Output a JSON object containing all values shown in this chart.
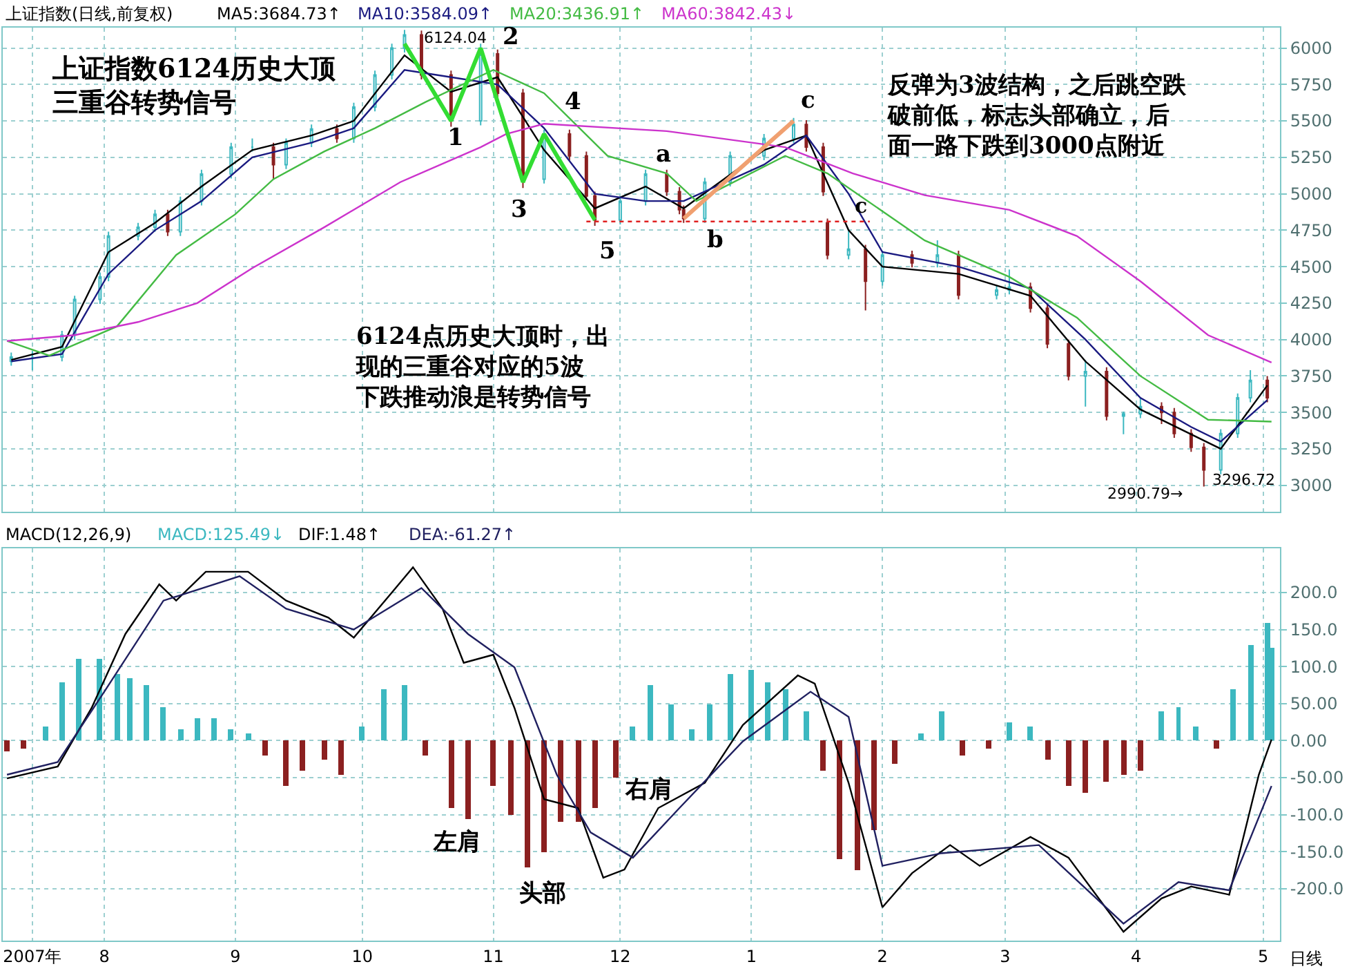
{
  "chart_data": [
    {
      "type": "candlestick",
      "title": "上证指数(日线,前复权)",
      "x": [
        "2007-07-10",
        "2007-07-15",
        "2007-07-22",
        "2007-07-25",
        "2007-07-31",
        "2007-08-02",
        "2007-08-09",
        "2007-08-13",
        "2007-08-16",
        "2007-08-19",
        "2007-08-24",
        "2007-08-31",
        "2007-09-05",
        "2007-09-10",
        "2007-09-13",
        "2007-09-19",
        "2007-09-25",
        "2007-09-29",
        "2007-10-04",
        "2007-10-08",
        "2007-10-11",
        "2007-10-15",
        "2007-10-22",
        "2007-10-29",
        "2007-11-02",
        "2007-11-08",
        "2007-11-13",
        "2007-11-19",
        "2007-11-23",
        "2007-11-25",
        "2007-12-01",
        "2007-12-07",
        "2007-12-12",
        "2007-12-15",
        "2007-12-16",
        "2007-12-21",
        "2007-12-27",
        "2008-01-04",
        "2008-01-11",
        "2008-01-14",
        "2008-01-18",
        "2008-01-19",
        "2008-01-24",
        "2008-01-28",
        "2008-02-01",
        "2008-02-08",
        "2008-02-14",
        "2008-02-19",
        "2008-02-28",
        "2008-03-02",
        "2008-03-07",
        "2008-03-11",
        "2008-03-16",
        "2008-03-20",
        "2008-03-25",
        "2008-03-29",
        "2008-04-02",
        "2008-04-07",
        "2008-04-10",
        "2008-04-14",
        "2008-04-17",
        "2008-04-21",
        "2008-04-25",
        "2008-04-28",
        "2008-05-02"
      ],
      "ohlc": [
        [
          3850,
          3910,
          3820,
          3880
        ],
        [
          3880,
          3920,
          3790,
          3880
        ],
        [
          3880,
          4060,
          3850,
          4030
        ],
        [
          4030,
          4300,
          4000,
          4275
        ],
        [
          4275,
          4460,
          4245,
          4430
        ],
        [
          4430,
          4740,
          4400,
          4710
        ],
        [
          4710,
          4800,
          4680,
          4770
        ],
        [
          4770,
          4890,
          4740,
          4860
        ],
        [
          4860,
          4890,
          4710,
          4740
        ],
        [
          4740,
          4980,
          4710,
          4950
        ],
        [
          4950,
          5165,
          4920,
          5135
        ],
        [
          5135,
          5350,
          5105,
          5320
        ],
        [
          5320,
          5380,
          5290,
          5320
        ],
        [
          5320,
          5350,
          5100,
          5200
        ],
        [
          5200,
          5380,
          5170,
          5350
        ],
        [
          5350,
          5475,
          5320,
          5445
        ],
        [
          5445,
          5475,
          5350,
          5380
        ],
        [
          5380,
          5625,
          5350,
          5595
        ],
        [
          5595,
          5845,
          5565,
          5815
        ],
        [
          5815,
          6030,
          5785,
          6000
        ],
        [
          6000,
          6124.04,
          5970,
          6090
        ],
        [
          6090,
          6120,
          5785,
          5815
        ],
        [
          5815,
          5845,
          5460,
          5500
        ],
        [
          5500,
          6030,
          5470,
          5960
        ],
        [
          5960,
          5990,
          5660,
          5690
        ],
        [
          5690,
          5720,
          5040,
          5100
        ],
        [
          5100,
          5440,
          5070,
          5410
        ],
        [
          5410,
          5440,
          5230,
          5260
        ],
        [
          5260,
          5290,
          4955,
          4985
        ],
        [
          4985,
          5015,
          4780,
          4820
        ],
        [
          4820,
          4980,
          4790,
          4950
        ],
        [
          4950,
          5165,
          4920,
          5135
        ],
        [
          5135,
          5165,
          4985,
          5015
        ],
        [
          5015,
          5045,
          4860,
          4890
        ],
        [
          4890,
          4920,
          4800,
          4830
        ],
        [
          4830,
          5110,
          4800,
          5080
        ],
        [
          5080,
          5290,
          5050,
          5260
        ],
        [
          5260,
          5410,
          5230,
          5380
        ],
        [
          5380,
          5520,
          5350,
          5475
        ],
        [
          5475,
          5505,
          5290,
          5320
        ],
        [
          5320,
          5350,
          4985,
          5015
        ],
        [
          4800,
          4830,
          4550,
          4580
        ],
        [
          4580,
          4750,
          4550,
          4620
        ],
        [
          4620,
          4650,
          4200,
          4400
        ],
        [
          4400,
          4610,
          4370,
          4580
        ],
        [
          4580,
          4610,
          4495,
          4525
        ],
        [
          4525,
          4680,
          4495,
          4580
        ],
        [
          4580,
          4610,
          4275,
          4305
        ],
        [
          4305,
          4370,
          4275,
          4340
        ],
        [
          4340,
          4480,
          4310,
          4360
        ],
        [
          4360,
          4390,
          4185,
          4215
        ],
        [
          4215,
          4245,
          3940,
          3970
        ],
        [
          3970,
          4000,
          3720,
          3750
        ],
        [
          3750,
          3860,
          3540,
          3780
        ],
        [
          3780,
          3810,
          3445,
          3475
        ],
        [
          3475,
          3505,
          3350,
          3490
        ],
        [
          3490,
          3600,
          3460,
          3540
        ],
        [
          3540,
          3570,
          3420,
          3500
        ],
        [
          3500,
          3530,
          3325,
          3355
        ],
        [
          3355,
          3385,
          3230,
          3260
        ],
        [
          3260,
          3290,
          2990.79,
          3105
        ],
        [
          3105,
          3385,
          3075,
          3355
        ],
        [
          3355,
          3630,
          3325,
          3600
        ],
        [
          3600,
          3790,
          3570,
          3720
        ],
        [
          3720,
          3750,
          3570,
          3600
        ]
      ],
      "xlim": [
        "2007-07-08",
        "2008-05-05"
      ],
      "xticks": [
        {
          "value": "2007-07-15",
          "label": null
        },
        {
          "value": "2007-08-01",
          "label": null
        },
        {
          "value": "2007-09-01",
          "label": null
        },
        {
          "value": "2007-10-01",
          "label": null
        },
        {
          "value": "2007-11-01",
          "label": null
        },
        {
          "value": "2007-12-01",
          "label": null
        },
        {
          "value": "2008-01-01",
          "label": null
        },
        {
          "value": "2008-02-01",
          "label": null
        },
        {
          "value": "2008-03-01",
          "label": null
        },
        {
          "value": "2008-04-01",
          "label": null
        },
        {
          "value": "2008-05-01",
          "label": null
        }
      ],
      "ylim": [
        2820,
        6140
      ],
      "yticks": [
        3000,
        3250,
        3500,
        3750,
        4000,
        4250,
        4500,
        4750,
        5000,
        5250,
        5500,
        5750,
        6000
      ],
      "tick_labels": "y",
      "grid": true,
      "series": [
        {
          "type": "line",
          "name": "MA5:3684.73↑",
          "color": "#000000",
          "x": [
            "2007-07-10",
            "2007-07-22",
            "2007-08-02",
            "2007-08-13",
            "2007-08-24",
            "2007-09-05",
            "2007-09-19",
            "2007-09-29",
            "2007-10-11",
            "2007-10-22",
            "2007-11-02",
            "2007-11-13",
            "2007-11-25",
            "2007-12-07",
            "2007-12-16",
            "2008-01-04",
            "2008-01-14",
            "2008-01-24",
            "2008-02-01",
            "2008-02-19",
            "2008-03-07",
            "2008-03-20",
            "2008-04-02",
            "2008-04-14",
            "2008-04-21",
            "2008-05-02"
          ],
          "values": [
            3860,
            3950,
            4600,
            4800,
            5050,
            5300,
            5400,
            5500,
            5950,
            5700,
            5800,
            5300,
            4900,
            5050,
            4900,
            5300,
            5400,
            4750,
            4500,
            4450,
            4300,
            3850,
            3520,
            3350,
            3250,
            3684.73
          ]
        },
        {
          "type": "line",
          "name": "MA10:3584.09↑",
          "color": "#1a1a80",
          "x": [
            "2007-07-10",
            "2007-07-22",
            "2007-08-02",
            "2007-08-13",
            "2007-08-24",
            "2007-09-05",
            "2007-09-19",
            "2007-09-29",
            "2007-10-11",
            "2007-10-22",
            "2007-11-02",
            "2007-11-13",
            "2007-11-25",
            "2007-12-07",
            "2007-12-16",
            "2008-01-04",
            "2008-01-14",
            "2008-01-24",
            "2008-02-01",
            "2008-02-19",
            "2008-03-07",
            "2008-03-20",
            "2008-04-02",
            "2008-04-14",
            "2008-04-21",
            "2008-05-02"
          ],
          "values": [
            3850,
            3900,
            4450,
            4750,
            4950,
            5250,
            5350,
            5450,
            5850,
            5800,
            5750,
            5450,
            5000,
            4950,
            4950,
            5200,
            5400,
            5000,
            4600,
            4500,
            4350,
            4000,
            3600,
            3400,
            3300,
            3584.09
          ]
        },
        {
          "type": "line",
          "name": "MA20:3436.91↑",
          "color": "#44bb44",
          "x": [
            "2007-07-09",
            "2007-07-19",
            "2007-08-04",
            "2007-08-18",
            "2007-09-01",
            "2007-09-10",
            "2007-09-22",
            "2007-10-04",
            "2007-10-16",
            "2007-11-01",
            "2007-11-13",
            "2007-11-28",
            "2007-12-12",
            "2007-12-19",
            "2008-01-09",
            "2008-01-19",
            "2008-02-11",
            "2008-03-02",
            "2008-03-18",
            "2008-04-02",
            "2008-04-18",
            "2008-05-03"
          ],
          "values": [
            3990,
            3890,
            4090,
            4580,
            4860,
            5100,
            5290,
            5450,
            5630,
            5850,
            5690,
            5260,
            5140,
            4950,
            5260,
            5140,
            4680,
            4430,
            4150,
            3750,
            3450,
            3436.91
          ]
        },
        {
          "type": "line",
          "name": "MA60:3842.43↓",
          "color": "#cc33cc",
          "x": [
            "2007-07-09",
            "2007-07-25",
            "2007-08-09",
            "2007-08-23",
            "2007-09-05",
            "2007-09-22",
            "2007-10-10",
            "2007-10-29",
            "2007-11-04",
            "2007-11-13",
            "2007-12-12",
            "2008-01-09",
            "2008-01-25",
            "2008-02-11",
            "2008-03-02",
            "2008-03-18",
            "2008-04-02",
            "2008-04-18",
            "2008-05-03"
          ],
          "values": [
            3990,
            4030,
            4120,
            4250,
            4490,
            4770,
            5080,
            5320,
            5410,
            5480,
            5430,
            5320,
            5140,
            4990,
            4890,
            4710,
            4400,
            4030,
            3842.43
          ]
        },
        {
          "type": "line",
          "color": "#33dd33",
          "x": [
            "2007-10-11",
            "2007-10-22",
            "2007-10-29",
            "2007-11-08",
            "2007-11-13",
            "2007-11-25"
          ],
          "values": [
            6030,
            5500,
            6000,
            5080,
            5410,
            4820
          ]
        },
        {
          "type": "line",
          "color": "#f0a070",
          "x": [
            "2007-12-16",
            "2008-01-11"
          ],
          "values": [
            4830,
            5500
          ]
        },
        {
          "type": "line",
          "color": "#e02020",
          "line_style": "dotted",
          "x": [
            "2007-11-23",
            "2008-01-29"
          ],
          "values": [
            4810,
            4810
          ]
        }
      ],
      "annotations": [
        "上证指数6124历史大顶三重谷转势信号",
        "6124点历史大顶时，出现的三重谷对应的5波下跌推动浪是转势信号",
        "反弹为3波结构，之后跳空跌破前低，标志头部确立，后面一路下跌到3000点附近",
        "6124.04",
        "1",
        "2",
        "3",
        "4",
        "5",
        "a",
        "b",
        "c",
        "c",
        "2990.79→",
        "3296.72"
      ]
    },
    {
      "type": "line",
      "title": "MACD(12,26,9)",
      "xlim": [
        "2007-07-08",
        "2008-05-05"
      ],
      "xticks": [
        {
          "value": "2007-07-15",
          "label": "2007年"
        },
        {
          "value": "2007-08-01",
          "label": "8"
        },
        {
          "value": "2007-09-01",
          "label": "9"
        },
        {
          "value": "2007-10-01",
          "label": "10"
        },
        {
          "value": "2007-11-01",
          "label": "11"
        },
        {
          "value": "2007-12-01",
          "label": "12"
        },
        {
          "value": "2008-01-01",
          "label": "1"
        },
        {
          "value": "2008-02-01",
          "label": "2"
        },
        {
          "value": "2008-03-01",
          "label": "3"
        },
        {
          "value": "2008-04-01",
          "label": "4"
        },
        {
          "value": "2008-05-01",
          "label": "5"
        }
      ],
      "ylim": [
        -270,
        260
      ],
      "yticks": [
        {
          "value": -200,
          "label": "-200.0"
        },
        {
          "value": -150,
          "label": "-150.0"
        },
        {
          "value": -100,
          "label": "-100.0"
        },
        {
          "value": -50,
          "label": "-50.00"
        },
        {
          "value": 0,
          "label": "0.00"
        },
        {
          "value": 50,
          "label": "50.00"
        },
        {
          "value": 100,
          "label": "100.0"
        },
        {
          "value": 150,
          "label": "150.0"
        },
        {
          "value": 200,
          "label": "200.0"
        }
      ],
      "grid": true,
      "series": [
        {
          "type": "bar",
          "name": "MACD:125.49↓",
          "color": "#3cb8c0",
          "x": [
            "2007-07-18",
            "2007-07-22",
            "2007-07-26",
            "2007-07-31",
            "2007-08-04",
            "2007-08-07",
            "2007-08-11",
            "2007-08-15",
            "2007-08-19",
            "2007-08-23",
            "2007-08-27",
            "2007-08-31",
            "2007-09-04",
            "2007-10-01",
            "2007-10-06",
            "2007-10-11",
            "2007-12-04",
            "2007-12-08",
            "2007-12-13",
            "2007-12-18",
            "2007-12-22",
            "2007-12-27",
            "2008-01-01",
            "2008-01-05",
            "2008-01-09",
            "2008-01-14",
            "2008-02-10",
            "2008-02-15",
            "2008-03-02",
            "2008-03-07",
            "2008-04-07",
            "2008-04-11",
            "2008-04-15",
            "2008-04-24",
            "2008-04-28",
            "2008-05-02",
            "2008-05-03"
          ],
          "values": [
            20,
            80,
            110,
            110,
            90,
            85,
            75,
            45,
            15,
            30,
            30,
            15,
            10,
            20,
            70,
            75,
            20,
            75,
            50,
            15,
            50,
            90,
            95,
            80,
            70,
            40,
            10,
            40,
            25,
            20,
            40,
            45,
            20,
            70,
            130,
            160,
            125.49
          ]
        },
        {
          "type": "bar",
          "color": "#8b2020",
          "x": [
            "2007-07-09",
            "2007-07-13",
            "2007-09-08",
            "2007-09-13",
            "2007-09-17",
            "2007-09-22",
            "2007-09-26",
            "2007-10-16",
            "2007-10-22",
            "2007-10-26",
            "2007-11-01",
            "2007-11-05",
            "2007-11-09",
            "2007-11-13",
            "2007-11-17",
            "2007-11-21",
            "2007-11-25",
            "2007-11-30",
            "2008-01-18",
            "2008-01-22",
            "2008-01-26",
            "2008-01-30",
            "2008-02-04",
            "2008-02-20",
            "2008-02-26",
            "2008-03-11",
            "2008-03-16",
            "2008-03-20",
            "2008-03-25",
            "2008-03-29",
            "2008-04-02",
            "2008-04-20"
          ],
          "values": [
            -15,
            -10,
            -20,
            -60,
            -40,
            -25,
            -45,
            -20,
            -90,
            -105,
            -60,
            -100,
            -170,
            -150,
            -110,
            -110,
            -90,
            -50,
            -40,
            -160,
            -175,
            -120,
            -30,
            -20,
            -10,
            -25,
            -60,
            -70,
            -55,
            -45,
            -40,
            -10
          ]
        },
        {
          "type": "line",
          "name": "DIF:1.48↑",
          "color": "#000000",
          "x": [
            "2007-07-09",
            "2007-07-21",
            "2007-07-29",
            "2007-08-06",
            "2007-08-14",
            "2007-08-18",
            "2007-08-25",
            "2007-09-04",
            "2007-09-13",
            "2007-09-23",
            "2007-09-29",
            "2007-10-08",
            "2007-10-13",
            "2007-10-20",
            "2007-10-25",
            "2007-11-01",
            "2007-11-06",
            "2007-11-13",
            "2007-11-21",
            "2007-11-27",
            "2007-12-02",
            "2007-12-10",
            "2007-12-21",
            "2007-12-30",
            "2008-01-12",
            "2008-01-16",
            "2008-01-24",
            "2008-02-01",
            "2008-02-08",
            "2008-02-17",
            "2008-02-24",
            "2008-03-07",
            "2008-03-16",
            "2008-03-29",
            "2008-04-07",
            "2008-04-14",
            "2008-04-23",
            "2008-04-30",
            "2008-05-03"
          ],
          "values": [
            -51,
            -35,
            44,
            144,
            211,
            189,
            228,
            228,
            189,
            166,
            139,
            200,
            234,
            178,
            105,
            116,
            44,
            -79,
            -91,
            -185,
            -174,
            -91,
            -57,
            21,
            88,
            77,
            -57,
            -225,
            -179,
            -141,
            -169,
            -130,
            -158,
            -258,
            -213,
            -197,
            -208,
            -46,
            1.48
          ]
        },
        {
          "type": "line",
          "name": "DEA:-61.27↑",
          "color": "#202060",
          "x": [
            "2007-07-09",
            "2007-07-21",
            "2007-08-01",
            "2007-08-15",
            "2007-09-02",
            "2007-09-13",
            "2007-09-29",
            "2007-10-15",
            "2007-10-26",
            "2007-11-06",
            "2007-11-16",
            "2007-11-24",
            "2007-12-04",
            "2007-12-15",
            "2007-12-30",
            "2008-01-15",
            "2008-01-24",
            "2008-02-01",
            "2008-02-15",
            "2008-03-09",
            "2008-03-29",
            "2008-04-11",
            "2008-04-23",
            "2008-05-03"
          ],
          "values": [
            -46,
            -29,
            66,
            189,
            222,
            178,
            150,
            206,
            144,
            99,
            -46,
            -124,
            -158,
            -91,
            -1,
            66,
            32,
            -169,
            -152,
            -141,
            -247,
            -191,
            -202,
            -61.27
          ]
        }
      ],
      "annotations": [
        "日线",
        "左肩",
        "头部",
        "右肩"
      ]
    }
  ]
}
